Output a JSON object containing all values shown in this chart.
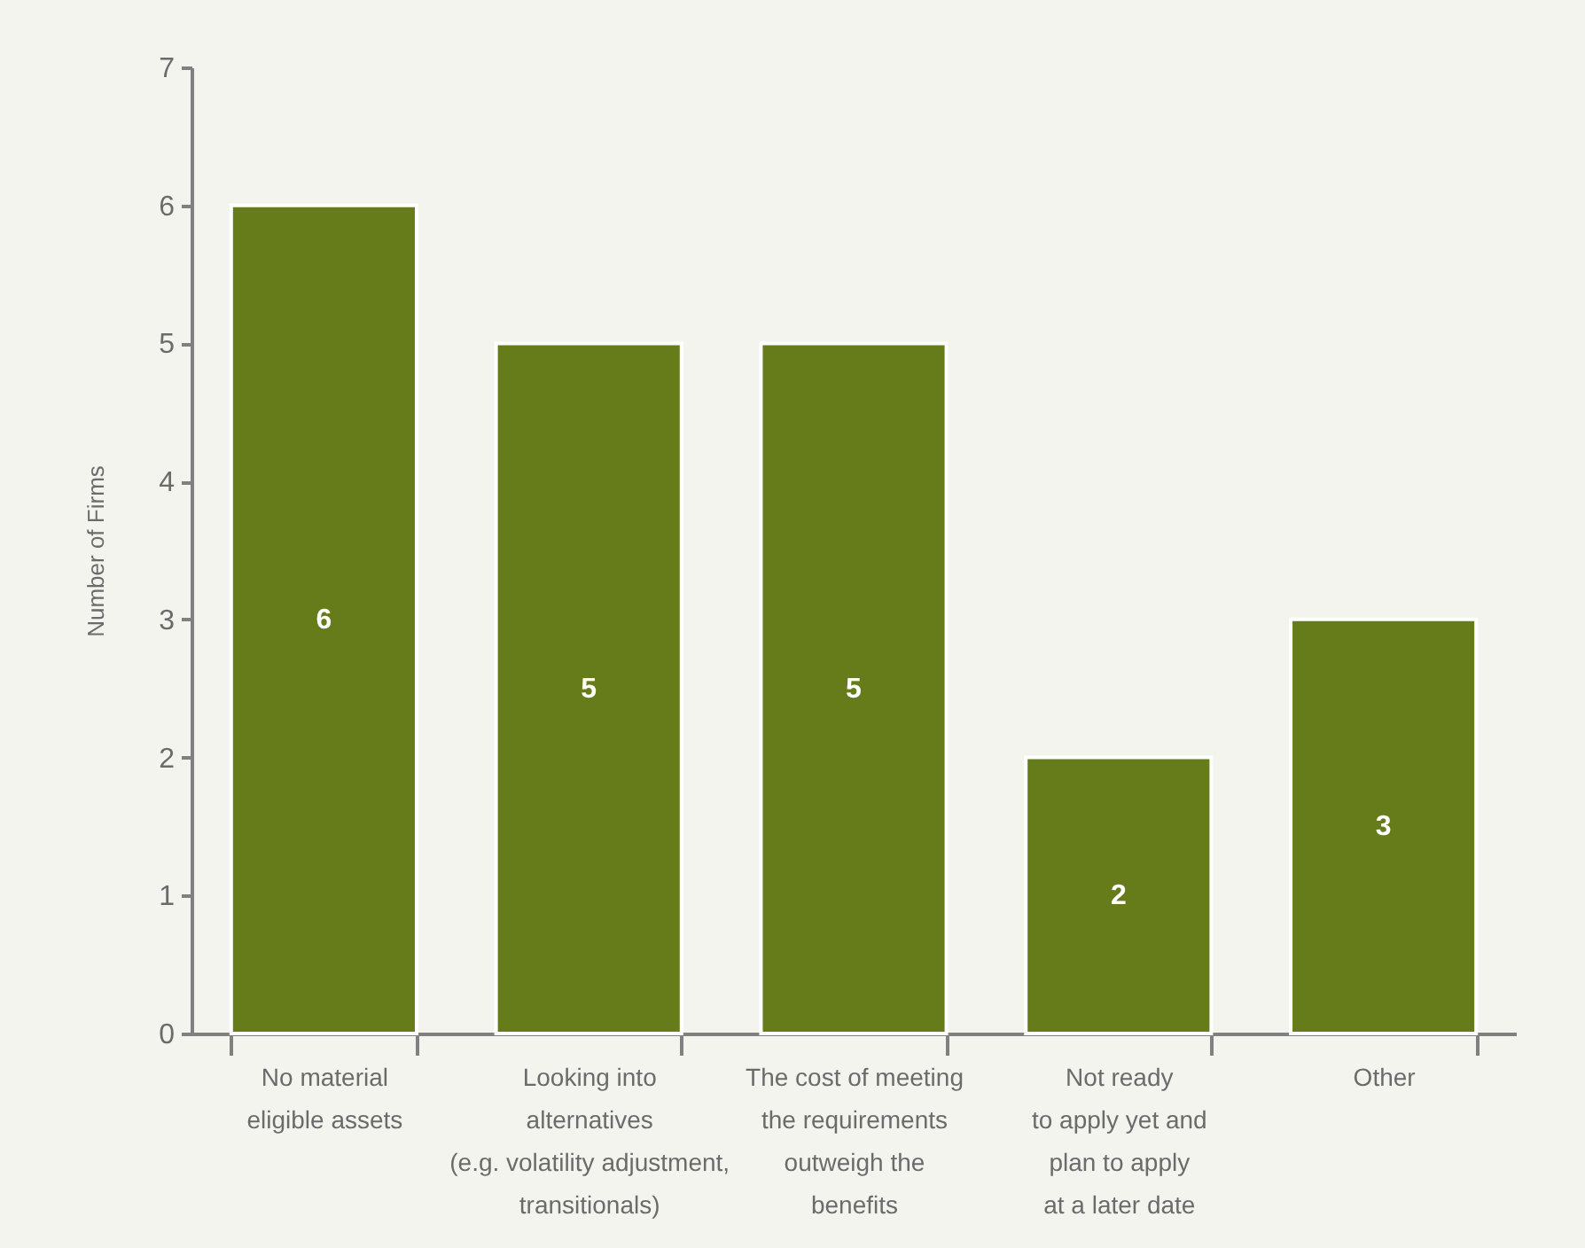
{
  "chart_data": {
    "type": "bar",
    "ylabel": "Number of Firms",
    "categories": [
      "No material\neligible assets",
      "Looking into\nalternatives\n(e.g. volatility adjustment,\ntransitionals)",
      "The cost of meeting\nthe requirements\noutweigh the\nbenefits",
      "Not ready\nto apply yet and\nplan to apply\nat a later date",
      "Other"
    ],
    "values": [
      6,
      5,
      5,
      2,
      3
    ],
    "color": "#667c1b",
    "ylim": [
      0,
      7
    ],
    "yticks": [
      0,
      1,
      2,
      3,
      4,
      5,
      6,
      7
    ],
    "data_labels": true
  }
}
